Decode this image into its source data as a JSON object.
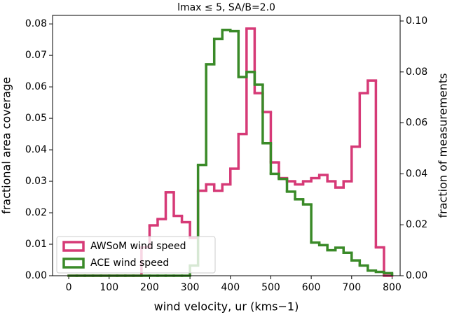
{
  "chart_data": {
    "type": "histogram",
    "title": "lmax ≤ 5, SA/B=2.0",
    "x_label": "wind velocity, ur (kms−1)",
    "y_label": "fractional area coverage",
    "y2_label": "fraction of measurements",
    "bins": [
      0,
      20,
      40,
      60,
      80,
      100,
      120,
      140,
      160,
      180,
      200,
      220,
      240,
      260,
      280,
      300,
      320,
      340,
      360,
      380,
      400,
      420,
      440,
      460,
      480,
      500,
      520,
      540,
      560,
      580,
      600,
      620,
      640,
      660,
      680,
      700,
      720,
      740,
      760,
      780,
      800
    ],
    "series": [
      {
        "name": "AWSoM wind speed",
        "color": "#d63a77",
        "axis": "y",
        "values": [
          0,
          0,
          0,
          0,
          0,
          0,
          0,
          0,
          0,
          0.009,
          0.016,
          0.018,
          0.0265,
          0.019,
          0.017,
          0.012,
          0.027,
          0.029,
          0.027,
          0.029,
          0.034,
          0.045,
          0.0785,
          0.058,
          0.052,
          0.036,
          0.031,
          0.03,
          0.029,
          0.03,
          0.031,
          0.032,
          0.03,
          0.028,
          0.03,
          0.041,
          0.058,
          0.062,
          0.009,
          0
        ]
      },
      {
        "name": "ACE wind speed",
        "color": "#3a8a28",
        "axis": "y2",
        "values": [
          0,
          0,
          0,
          0,
          0,
          0,
          0,
          0,
          0,
          0,
          0,
          0,
          0,
          0,
          0,
          0.004,
          0.0435,
          0.083,
          0.093,
          0.0965,
          0.096,
          0.078,
          0.08,
          0.075,
          0.052,
          0.04,
          0.038,
          0.033,
          0.03,
          0.028,
          0.013,
          0.012,
          0.01,
          0.011,
          0.009,
          0.006,
          0.004,
          0.002,
          0.0015,
          0.001
        ]
      }
    ],
    "xlim": [
      -40,
      820
    ],
    "xticks": [
      0,
      100,
      200,
      300,
      400,
      500,
      600,
      700,
      800
    ],
    "ylim": [
      0,
      0.0827
    ],
    "yticks": [
      {
        "value": 0,
        "label": "0.00"
      },
      {
        "value": 0.01,
        "label": "0.01"
      },
      {
        "value": 0.02,
        "label": "0.02"
      },
      {
        "value": 0.03,
        "label": "0.03"
      },
      {
        "value": 0.04,
        "label": "0.04"
      },
      {
        "value": 0.05,
        "label": "0.05"
      },
      {
        "value": 0.06,
        "label": "0.06"
      },
      {
        "value": 0.07,
        "label": "0.07"
      },
      {
        "value": 0.08,
        "label": "0.08"
      }
    ],
    "y2lim": [
      0,
      0.1022
    ],
    "y2ticks": [
      {
        "value": 0,
        "label": "0.00"
      },
      {
        "value": 0.02,
        "label": "0.02"
      },
      {
        "value": 0.04,
        "label": "0.04"
      },
      {
        "value": 0.06,
        "label": "0.06"
      },
      {
        "value": 0.08,
        "label": "0.08"
      },
      {
        "value": 0.1,
        "label": "0.10"
      }
    ],
    "legend": "lower left"
  }
}
